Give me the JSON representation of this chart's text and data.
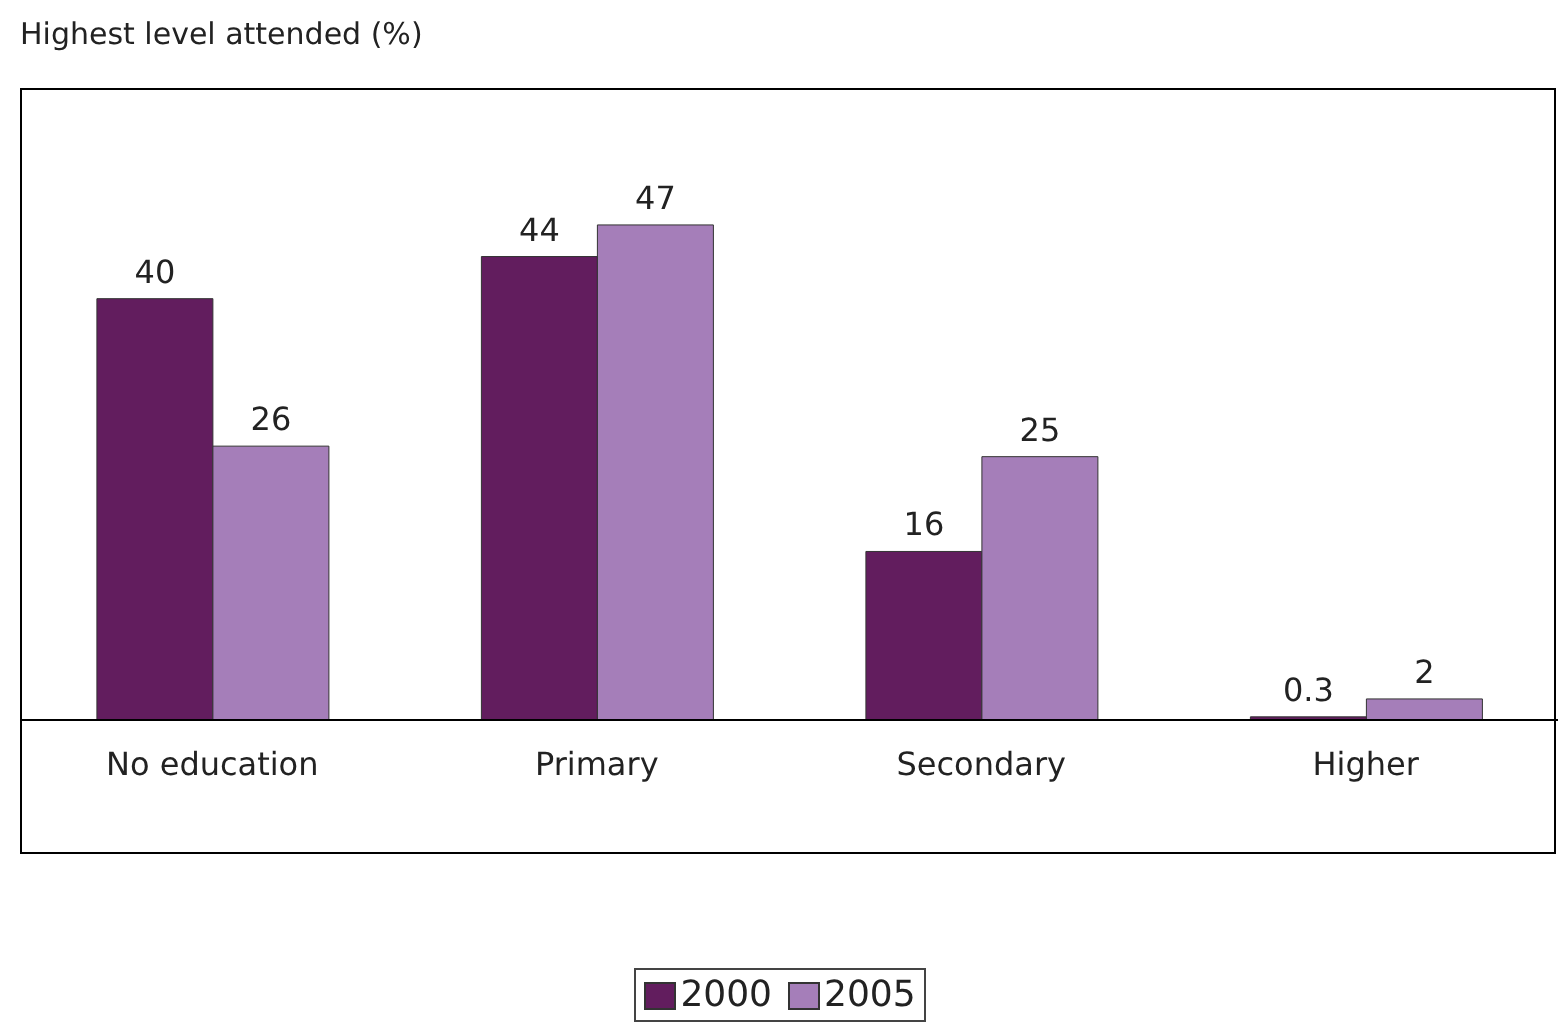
{
  "chart_data": {
    "type": "bar",
    "ylabel": "Highest level attended (%)",
    "categories": [
      "No education",
      "Primary",
      "Secondary",
      "Higher"
    ],
    "series": [
      {
        "name": "2000",
        "color": "#621d5e",
        "values": [
          40,
          44,
          16,
          0.3
        ]
      },
      {
        "name": "2005",
        "color": "#a57eb9",
        "values": [
          26,
          47,
          25,
          2
        ]
      }
    ],
    "ylim": [
      0,
      60
    ],
    "data_labels": true,
    "legend": "bottom"
  }
}
